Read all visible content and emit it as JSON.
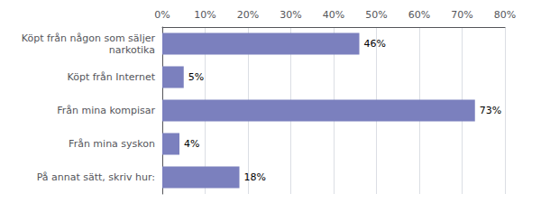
{
  "chart_data": {
    "type": "bar",
    "orientation": "horizontal",
    "categories": [
      "Köpt från någon som säljer\nnarkotika",
      "Köpt från Internet",
      "Från mina kompisar",
      "Från mina syskon",
      "På annat sätt, skriv hur:"
    ],
    "values": [
      46,
      5,
      73,
      4,
      18
    ],
    "value_labels": [
      "46%",
      "5%",
      "73%",
      "4%",
      "18%"
    ],
    "color": "#7b80be",
    "xlim": [
      0,
      80
    ],
    "xticks": [
      {
        "value": 0,
        "label": "0%"
      },
      {
        "value": 10,
        "label": "10%"
      },
      {
        "value": 20,
        "label": "20%"
      },
      {
        "value": 30,
        "label": "30%"
      },
      {
        "value": 40,
        "label": "40%"
      },
      {
        "value": 50,
        "label": "50%"
      },
      {
        "value": 60,
        "label": "60%"
      },
      {
        "value": 70,
        "label": "70%"
      },
      {
        "value": 80,
        "label": "80%"
      }
    ],
    "grid": true,
    "data_labels": true
  }
}
